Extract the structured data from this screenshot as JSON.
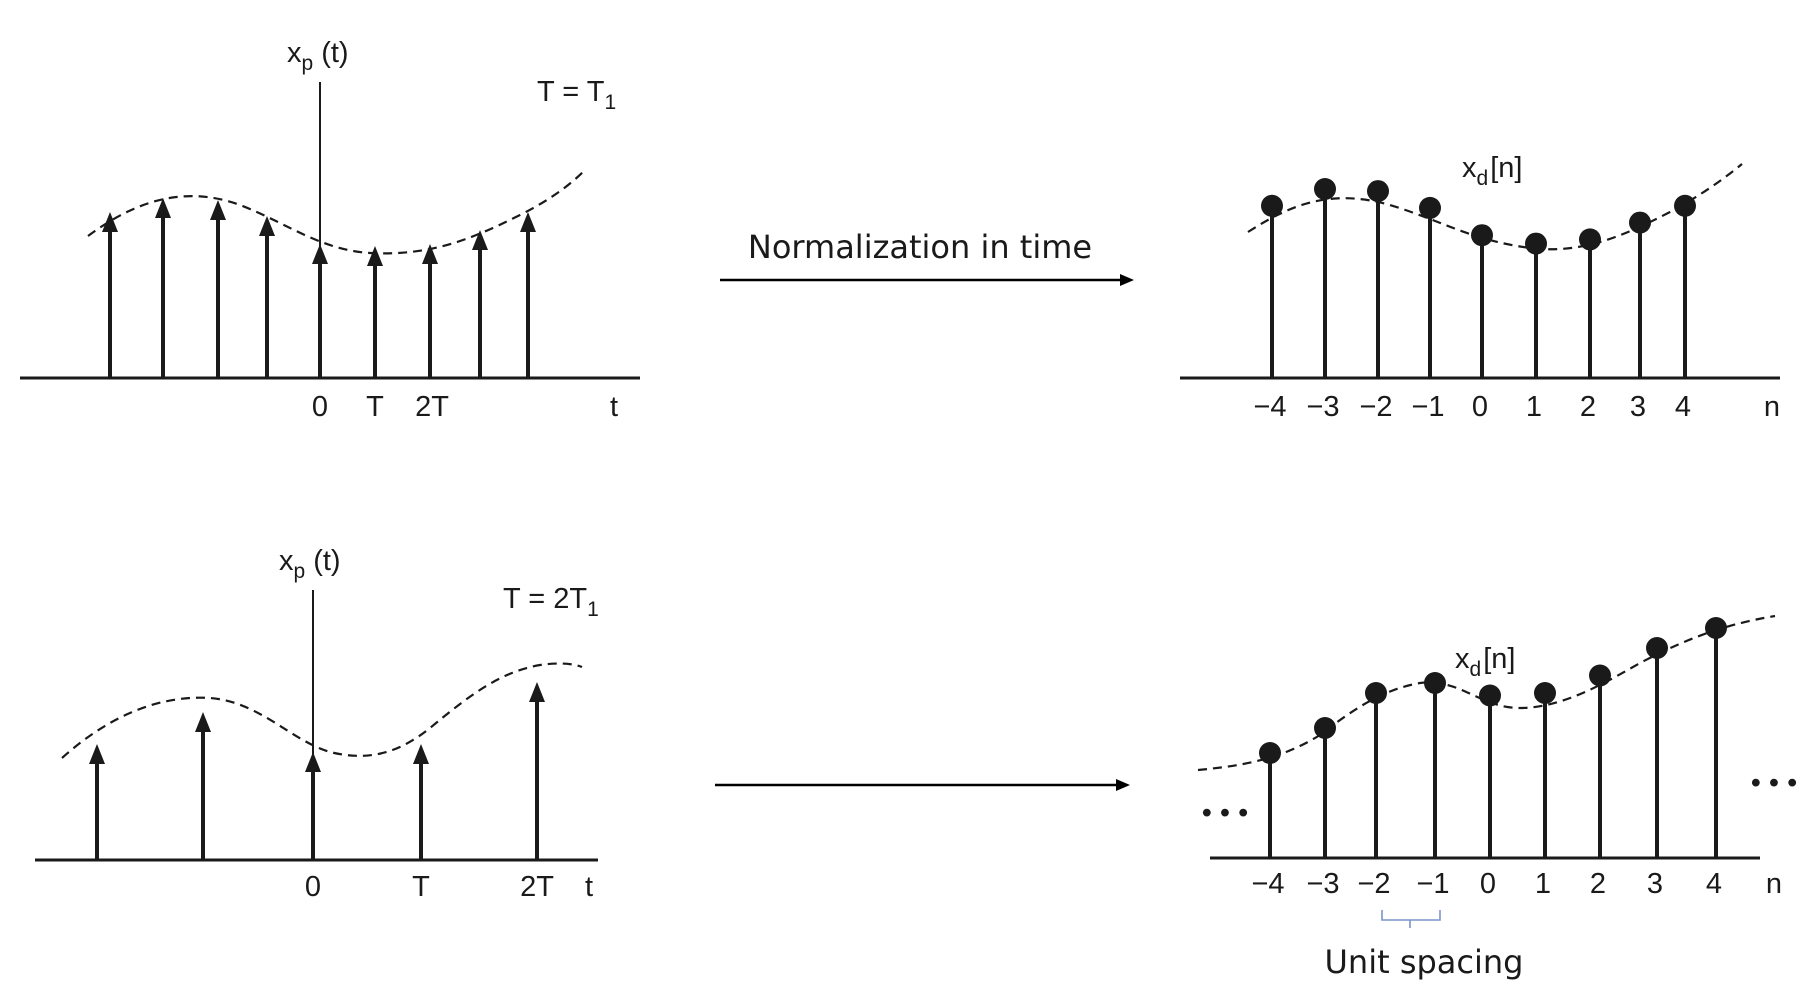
{
  "colors": {
    "ink": "#1a1a1a",
    "brace": "#7a96c8",
    "background": "#ffffff"
  },
  "top": {
    "left_plot": {
      "signal_label": "x",
      "signal_subscript": "p",
      "signal_argument": "(t)",
      "period_label": "T = T",
      "period_subscript": "1",
      "axis_variable": "t",
      "tick_labels": [
        "0",
        "T",
        "2T"
      ],
      "impulse_count": 9,
      "impulse_heights": [
        0.83,
        0.9,
        0.89,
        0.81,
        0.67,
        0.66,
        0.67,
        0.74,
        0.83
      ]
    },
    "arrow_label": "Normalization in time",
    "right_plot": {
      "sequence_label": "x",
      "sequence_subscript": "d",
      "sequence_argument": "[n]",
      "axis_variable": "n",
      "n_values": [
        -4,
        -3,
        -2,
        -1,
        0,
        1,
        2,
        3,
        4
      ],
      "n_labels": [
        "−4",
        "−3",
        "−2",
        "−1",
        "0",
        "1",
        "2",
        "3",
        "4"
      ],
      "sample_heights": [
        0.82,
        0.9,
        0.89,
        0.81,
        0.68,
        0.64,
        0.66,
        0.74,
        0.82
      ]
    }
  },
  "bottom": {
    "left_plot": {
      "signal_label": "x",
      "signal_subscript": "p",
      "signal_argument": "(t)",
      "period_label": "T = 2T",
      "period_subscript": "1",
      "axis_variable": "t",
      "tick_labels": [
        "0",
        "T",
        "2T"
      ],
      "impulse_count": 5,
      "impulse_heights": [
        0.58,
        0.74,
        0.54,
        0.58,
        0.89
      ]
    },
    "arrow_label": "",
    "right_plot": {
      "sequence_label": "x",
      "sequence_subscript": "d",
      "sequence_argument": "[n]",
      "axis_variable": "n",
      "n_values": [
        -4,
        -3,
        -2,
        -1,
        0,
        1,
        2,
        3,
        4
      ],
      "n_labels": [
        "−4",
        "−3",
        "−2",
        "−1",
        "0",
        "1",
        "2",
        "3",
        "4"
      ],
      "sample_heights": [
        0.42,
        0.52,
        0.66,
        0.7,
        0.65,
        0.66,
        0.73,
        0.84,
        0.92
      ],
      "ellipsis": "• • •",
      "brace_caption": "Unit spacing"
    }
  }
}
